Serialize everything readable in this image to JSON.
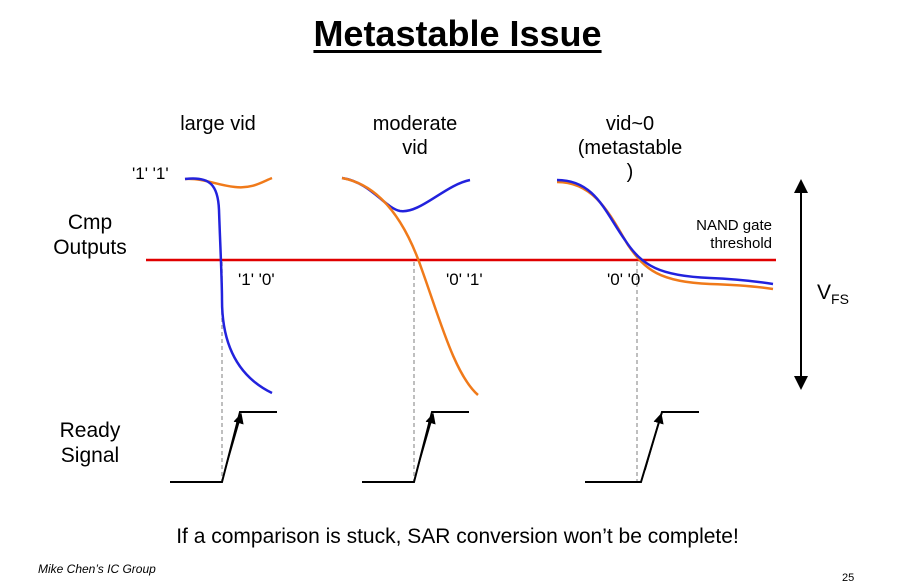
{
  "title": "Metastable Issue",
  "columns": {
    "large": {
      "line1": "large vid"
    },
    "moderate": {
      "line1": "moderate",
      "line2": "vid"
    },
    "zero": {
      "line1": "vid~0",
      "line2": "(metastable",
      "line3": ")"
    }
  },
  "labels": {
    "cmp_outputs_1": "Cmp",
    "cmp_outputs_2": "Outputs",
    "ready_signal_1": "Ready",
    "ready_signal_2": "Signal",
    "nand_1": "NAND gate",
    "nand_2": "threshold",
    "vfs_main": "V",
    "vfs_sub": "FS"
  },
  "logic_values": {
    "initial": "'1' '1'",
    "large": "'1' '0'",
    "moderate": "'0' '1'",
    "zero": "'0' '0'"
  },
  "caption": "If a comparison is stuck, SAR conversion won’t be complete!",
  "footer": {
    "author": "Mike Chen’s IC Group",
    "page": "25"
  },
  "colors": {
    "comparator_a": "#2222dd",
    "comparator_b": "#f07a1a",
    "threshold": "#e00000",
    "guide": "#aaaaaa"
  }
}
